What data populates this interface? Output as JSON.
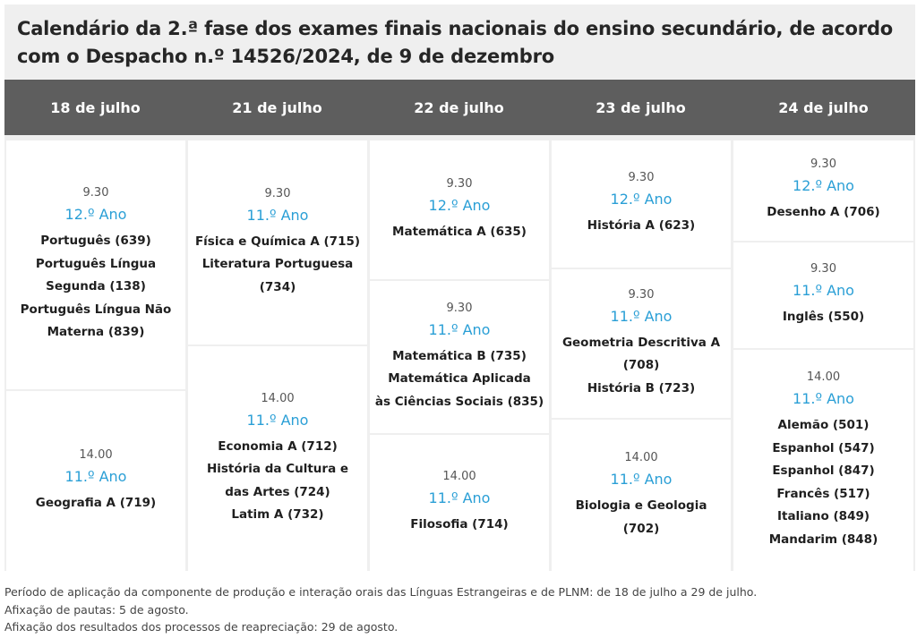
{
  "title": "Calendário da 2.ª fase dos exames finais nacionais do ensino secundário, de acordo com o Despacho n.º 14526/2024, de 9 de dezembro",
  "columns": [
    {
      "date": "18 de julho",
      "sessions": [
        {
          "time": "9.30",
          "year": "12.º Ano",
          "exams": [
            "Português (639)",
            "Português Língua",
            "Segunda (138)",
            "Português Língua Não",
            "Materna (839)"
          ]
        },
        {
          "time": "14.00",
          "year": "11.º Ano",
          "exams": [
            "Geografia A (719)"
          ]
        }
      ]
    },
    {
      "date": "21 de julho",
      "sessions": [
        {
          "time": "9.30",
          "year": "11.º Ano",
          "exams": [
            "Física e Química A (715)",
            "Literatura Portuguesa",
            "(734)"
          ]
        },
        {
          "time": "14.00",
          "year": "11.º Ano",
          "exams": [
            "Economia A (712)",
            "História da Cultura e",
            "das Artes (724)",
            "Latim A (732)"
          ]
        }
      ]
    },
    {
      "date": "22 de julho",
      "sessions": [
        {
          "time": "9.30",
          "year": "12.º Ano",
          "exams": [
            "Matemática A (635)"
          ]
        },
        {
          "time": "9.30",
          "year": "11.º Ano",
          "exams": [
            "Matemática B (735)",
            "Matemática Aplicada",
            "às Ciências Sociais (835)"
          ]
        },
        {
          "time": "14.00",
          "year": "11.º Ano",
          "exams": [
            "Filosofia (714)"
          ]
        }
      ]
    },
    {
      "date": "23 de julho",
      "sessions": [
        {
          "time": "9.30",
          "year": "12.º Ano",
          "exams": [
            "História A (623)"
          ]
        },
        {
          "time": "9.30",
          "year": "11.º Ano",
          "exams": [
            "Geometria Descritiva A",
            "(708)",
            "História B (723)"
          ]
        },
        {
          "time": "14.00",
          "year": "11.º Ano",
          "exams": [
            "Biologia e Geologia",
            "(702)"
          ]
        }
      ]
    },
    {
      "date": "24 de julho",
      "sessions": [
        {
          "time": "9.30",
          "year": "12.º Ano",
          "exams": [
            "Desenho A (706)"
          ]
        },
        {
          "time": "9.30",
          "year": "11.º Ano",
          "exams": [
            "Inglês (550)"
          ]
        },
        {
          "time": "14.00",
          "year": "11.º Ano",
          "exams": [
            "Alemão (501)",
            "Espanhol (547)",
            "Espanhol (847)",
            "Francês (517)",
            "Italiano (849)",
            "Mandarim (848)"
          ]
        }
      ]
    }
  ],
  "footer": [
    "Período de aplicação da componente de produção e interação orais das Línguas Estrangeiras e de PLNM: de 18 de julho a 29 de julho.",
    "Afixação de pautas: 5 de agosto.",
    "Afixação dos resultados dos processos de reapreciação: 29 de agosto."
  ]
}
